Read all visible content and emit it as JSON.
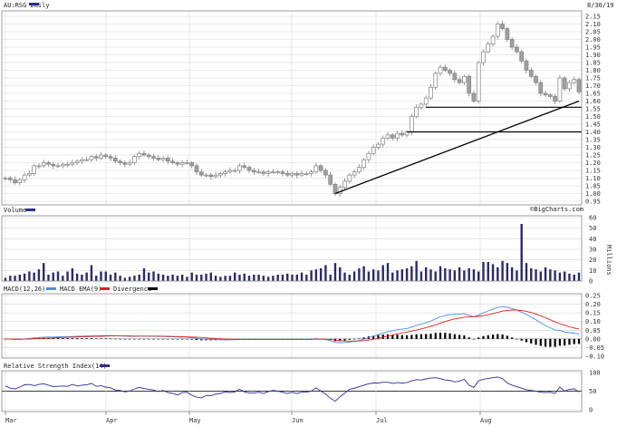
{
  "main_chart": {
    "symbol_title": "AU:RSG Daily",
    "date": "8/30/19",
    "credit": "©BigCharts.com"
  },
  "panels": {
    "volume_title": "Volume",
    "volume_unit": "Millions",
    "macd_title": "MACD(12,26)",
    "macd_ema_label": "MACD EMA(9)",
    "divergence_label": "Divergence",
    "rsi_title": "Relative Strength Index(14)"
  },
  "colors": {
    "up_candle": "#ffffff",
    "down_candle": "#a0a0a0",
    "candle_outline": "#808080",
    "volume_bar": "#2b2b6b",
    "macd_line": "#4a90e2",
    "ema_line": "#dd2222",
    "divergence": "#000000",
    "rsi_line": "#2d2d8f",
    "trendline": "#000000"
  },
  "chart_data": [
    {
      "type": "candlestick",
      "title": "AU:RSG Daily",
      "x_tick_labels": [
        "Mar",
        "Apr",
        "May",
        "Jun",
        "Jul",
        "Aug"
      ],
      "ylim": [
        0.95,
        2.15
      ],
      "y_ticks": [
        0.95,
        1.0,
        1.05,
        1.1,
        1.15,
        1.2,
        1.25,
        1.3,
        1.35,
        1.4,
        1.45,
        1.5,
        1.55,
        1.6,
        1.65,
        1.7,
        1.75,
        1.8,
        1.85,
        1.9,
        1.95,
        2.0,
        2.05,
        2.1,
        2.15
      ],
      "close": [
        1.1,
        1.09,
        1.07,
        1.09,
        1.12,
        1.13,
        1.18,
        1.18,
        1.2,
        1.19,
        1.18,
        1.18,
        1.19,
        1.19,
        1.2,
        1.21,
        1.22,
        1.22,
        1.24,
        1.23,
        1.25,
        1.24,
        1.23,
        1.21,
        1.2,
        1.19,
        1.2,
        1.24,
        1.26,
        1.25,
        1.24,
        1.23,
        1.22,
        1.23,
        1.21,
        1.2,
        1.19,
        1.2,
        1.2,
        1.18,
        1.14,
        1.12,
        1.12,
        1.11,
        1.12,
        1.13,
        1.14,
        1.15,
        1.15,
        1.18,
        1.17,
        1.15,
        1.14,
        1.14,
        1.13,
        1.14,
        1.14,
        1.14,
        1.13,
        1.12,
        1.13,
        1.12,
        1.13,
        1.13,
        1.14,
        1.18,
        1.15,
        1.12,
        1.06,
        1.0,
        1.04,
        1.08,
        1.12,
        1.14,
        1.17,
        1.22,
        1.26,
        1.3,
        1.32,
        1.36,
        1.38,
        1.36,
        1.39,
        1.38,
        1.4,
        1.5,
        1.56,
        1.58,
        1.62,
        1.69,
        1.78,
        1.82,
        1.8,
        1.78,
        1.74,
        1.72,
        1.76,
        1.65,
        1.6,
        1.85,
        1.92,
        1.97,
        2.02,
        2.1,
        2.07,
        2.0,
        1.95,
        1.92,
        1.86,
        1.8,
        1.76,
        1.72,
        1.65,
        1.64,
        1.63,
        1.6,
        1.75,
        1.68,
        1.72,
        1.74,
        1.66
      ],
      "trendline": {
        "from": [
          69,
          1.0
        ],
        "to": [
          120,
          1.6
        ]
      },
      "support_lines": [
        {
          "value": 1.56,
          "from_index": 88,
          "to_index": 120
        },
        {
          "value": 1.4,
          "from_index": 84,
          "to_index": 120
        }
      ]
    },
    {
      "type": "bar",
      "title": "Volume",
      "ylabel": "Millions",
      "ylim": [
        0,
        60
      ],
      "y_ticks": [
        0,
        10,
        20,
        30,
        40,
        50,
        60
      ],
      "values": [
        3,
        5,
        5,
        6,
        7,
        9,
        8,
        11,
        17,
        6,
        8,
        9,
        5,
        9,
        12,
        7,
        6,
        8,
        15,
        5,
        9,
        9,
        6,
        8,
        5,
        3,
        4,
        5,
        6,
        12,
        8,
        9,
        7,
        6,
        5,
        6,
        5,
        6,
        4,
        8,
        6,
        6,
        7,
        8,
        5,
        4,
        5,
        5,
        8,
        6,
        7,
        5,
        6,
        6,
        5,
        4,
        5,
        6,
        6,
        7,
        6,
        6,
        8,
        6,
        10,
        11,
        12,
        15,
        6,
        17,
        13,
        8,
        6,
        9,
        12,
        14,
        9,
        11,
        10,
        15,
        17,
        8,
        10,
        11,
        12,
        14,
        19,
        9,
        13,
        11,
        9,
        14,
        12,
        11,
        10,
        13,
        10,
        12,
        11,
        9,
        18,
        18,
        16,
        13,
        19,
        17,
        13,
        10,
        54,
        17,
        12,
        11,
        9,
        13,
        11,
        10,
        8,
        9,
        7,
        6,
        8
      ]
    },
    {
      "type": "line",
      "title": "MACD(12,26)",
      "ylim": [
        -0.1,
        0.25
      ],
      "y_ticks": [
        -0.1,
        -0.05,
        0.0,
        0.05,
        0.1,
        0.15,
        0.2,
        0.25
      ],
      "series": [
        {
          "name": "MACD(12,26)",
          "values": [
            0.0,
            -0.002,
            -0.004,
            -0.003,
            0.0,
            0.003,
            0.006,
            0.008,
            0.01,
            0.011,
            0.011,
            0.012,
            0.013,
            0.013,
            0.014,
            0.015,
            0.016,
            0.017,
            0.018,
            0.018,
            0.019,
            0.019,
            0.019,
            0.018,
            0.017,
            0.016,
            0.015,
            0.015,
            0.016,
            0.016,
            0.015,
            0.015,
            0.014,
            0.014,
            0.013,
            0.012,
            0.011,
            0.01,
            0.009,
            0.007,
            0.004,
            0.0,
            -0.002,
            -0.004,
            -0.005,
            -0.005,
            -0.006,
            -0.005,
            -0.005,
            -0.004,
            -0.003,
            -0.003,
            -0.003,
            -0.003,
            -0.003,
            -0.003,
            -0.003,
            -0.003,
            -0.003,
            -0.003,
            -0.003,
            -0.003,
            -0.003,
            -0.003,
            -0.002,
            0.001,
            0.0,
            -0.004,
            -0.011,
            -0.02,
            -0.022,
            -0.021,
            -0.018,
            -0.014,
            -0.009,
            -0.002,
            0.007,
            0.016,
            0.025,
            0.034,
            0.042,
            0.047,
            0.053,
            0.056,
            0.06,
            0.068,
            0.078,
            0.085,
            0.093,
            0.103,
            0.116,
            0.127,
            0.135,
            0.14,
            0.142,
            0.143,
            0.145,
            0.137,
            0.128,
            0.138,
            0.15,
            0.161,
            0.171,
            0.181,
            0.185,
            0.182,
            0.175,
            0.166,
            0.154,
            0.14,
            0.126,
            0.11,
            0.093,
            0.077,
            0.064,
            0.052,
            0.049,
            0.04,
            0.036,
            0.033,
            0.028
          ]
        },
        {
          "name": "MACD EMA(9)",
          "values": [
            0.0,
            -0.0,
            -0.001,
            -0.002,
            -0.001,
            -0.001,
            0.001,
            0.002,
            0.004,
            0.005,
            0.006,
            0.007,
            0.008,
            0.009,
            0.01,
            0.011,
            0.012,
            0.013,
            0.014,
            0.015,
            0.015,
            0.016,
            0.017,
            0.017,
            0.017,
            0.017,
            0.017,
            0.016,
            0.016,
            0.016,
            0.016,
            0.016,
            0.016,
            0.015,
            0.015,
            0.014,
            0.014,
            0.013,
            0.012,
            0.011,
            0.01,
            0.008,
            0.006,
            0.004,
            0.002,
            0.001,
            -0.001,
            -0.002,
            -0.002,
            -0.003,
            -0.003,
            -0.003,
            -0.003,
            -0.003,
            -0.003,
            -0.003,
            -0.003,
            -0.003,
            -0.003,
            -0.003,
            -0.003,
            -0.003,
            -0.003,
            -0.003,
            -0.003,
            -0.002,
            -0.001,
            -0.002,
            -0.004,
            -0.007,
            -0.01,
            -0.012,
            -0.013,
            -0.013,
            -0.012,
            -0.01,
            -0.007,
            -0.002,
            0.003,
            0.009,
            0.016,
            0.022,
            0.029,
            0.034,
            0.039,
            0.045,
            0.051,
            0.058,
            0.065,
            0.073,
            0.081,
            0.091,
            0.1,
            0.108,
            0.115,
            0.12,
            0.125,
            0.128,
            0.128,
            0.13,
            0.134,
            0.139,
            0.146,
            0.153,
            0.16,
            0.164,
            0.167,
            0.166,
            0.164,
            0.159,
            0.152,
            0.144,
            0.133,
            0.122,
            0.11,
            0.098,
            0.088,
            0.079,
            0.07,
            0.063,
            0.056
          ]
        }
      ],
      "divergence_values": [
        0.0,
        -0.002,
        -0.004,
        -0.002,
        0.0,
        0.004,
        0.005,
        0.006,
        0.006,
        0.006,
        0.005,
        0.004,
        0.004,
        0.004,
        0.004,
        0.004,
        0.004,
        0.004,
        0.004,
        0.003,
        0.003,
        0.003,
        0.002,
        0.001,
        -0.0,
        -0.001,
        -0.002,
        -0.001,
        -0.0,
        -0.0,
        -0.001,
        -0.001,
        -0.001,
        -0.001,
        -0.002,
        -0.002,
        -0.003,
        -0.003,
        -0.003,
        -0.004,
        -0.006,
        -0.008,
        -0.008,
        -0.008,
        -0.007,
        -0.006,
        -0.005,
        -0.003,
        -0.003,
        -0.001,
        0.0,
        0.0,
        -0.0,
        -0.0,
        -0.0,
        -0.0,
        -0.0,
        -0.0,
        -0.0,
        -0.0,
        -0.0,
        -0.0,
        -0.0,
        -0.0,
        0.001,
        0.003,
        0.001,
        -0.002,
        -0.007,
        -0.013,
        -0.012,
        -0.009,
        -0.005,
        -0.001,
        0.003,
        0.008,
        0.014,
        0.019,
        0.022,
        0.025,
        0.026,
        0.024,
        0.024,
        0.022,
        0.021,
        0.023,
        0.027,
        0.027,
        0.028,
        0.03,
        0.035,
        0.036,
        0.035,
        0.032,
        0.027,
        0.023,
        0.02,
        0.009,
        -0.0,
        0.008,
        0.016,
        0.021,
        0.025,
        0.028,
        0.025,
        0.018,
        0.008,
        -0.0,
        -0.01,
        -0.019,
        -0.026,
        -0.034,
        -0.04,
        -0.045,
        -0.046,
        -0.046,
        -0.039,
        -0.039,
        -0.034,
        -0.03,
        -0.029
      ]
    },
    {
      "type": "line",
      "title": "Relative Strength Index(14)",
      "ylim": [
        0,
        100
      ],
      "y_ticks": [
        0,
        50,
        100
      ],
      "series": [
        {
          "name": "Relative Strength Index(14)",
          "values": [
            64,
            58,
            56,
            61,
            67,
            68,
            65,
            68,
            70,
            66,
            62,
            63,
            64,
            63,
            68,
            64,
            66,
            67,
            71,
            63,
            65,
            61,
            59,
            53,
            52,
            48,
            50,
            56,
            60,
            57,
            55,
            53,
            49,
            52,
            46,
            44,
            40,
            46,
            47,
            39,
            34,
            32,
            38,
            38,
            42,
            44,
            48,
            46,
            48,
            55,
            48,
            45,
            45,
            47,
            44,
            49,
            52,
            50,
            47,
            44,
            47,
            44,
            47,
            47,
            50,
            59,
            50,
            42,
            31,
            23,
            35,
            45,
            55,
            58,
            62,
            66,
            70,
            72,
            72,
            74,
            74,
            71,
            73,
            72,
            73,
            78,
            81,
            80,
            83,
            85,
            86,
            84,
            80,
            79,
            75,
            77,
            82,
            66,
            60,
            78,
            82,
            84,
            86,
            88,
            84,
            72,
            66,
            62,
            58,
            54,
            52,
            50,
            47,
            46,
            47,
            44,
            61,
            50,
            55,
            56,
            48
          ]
        }
      ]
    }
  ]
}
